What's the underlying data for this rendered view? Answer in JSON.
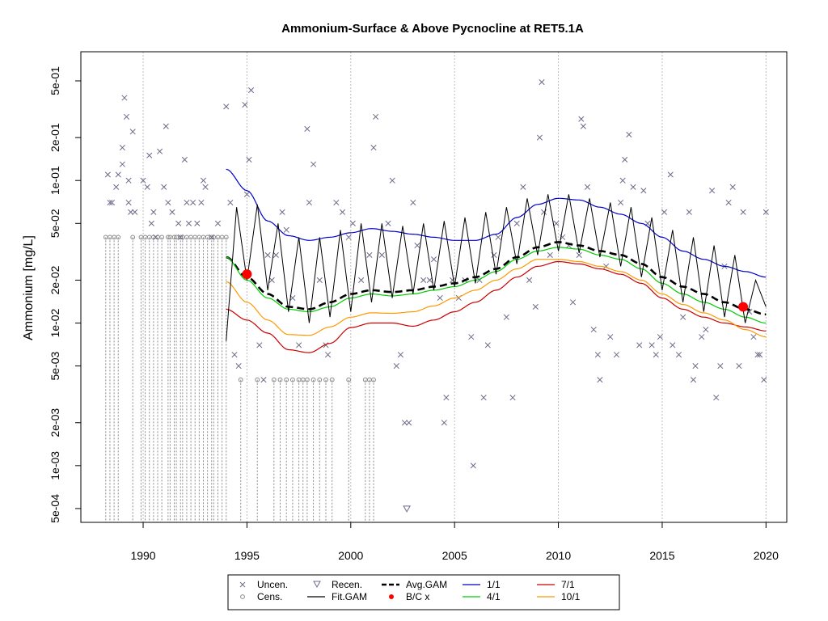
{
  "chart_data": {
    "type": "scatter",
    "title": "Ammonium-Surface & Above Pycnocline at RET5.1A",
    "ylabel": "Ammonium [mg/L]",
    "xlabel": "",
    "y_scale": "log10",
    "xlim": [
      1987.0,
      2021.0
    ],
    "ylim": [
      0.0004,
      0.8
    ],
    "grid": true,
    "x_ticks": [
      1990,
      1995,
      2000,
      2005,
      2010,
      2015,
      2020
    ],
    "x_tick_labels": [
      "1990",
      "1995",
      "2000",
      "2005",
      "2010",
      "2015",
      "2020"
    ],
    "y_ticks": [
      0.0005,
      0.001,
      0.002,
      0.005,
      0.01,
      0.02,
      0.05,
      0.1,
      0.2,
      0.5
    ],
    "y_tick_labels": [
      "5e-04",
      "1e-03",
      "2e-03",
      "5e-03",
      "1e-02",
      "2e-02",
      "5e-02",
      "1e-01",
      "2e-01",
      "5e-01"
    ],
    "legend": {
      "position": "bottom-center",
      "entries": [
        {
          "label": "Uncen.",
          "marker": "x",
          "color": "#6b6b8a"
        },
        {
          "label": "Cens.",
          "marker": "circle",
          "color": "#8a8a8a"
        },
        {
          "label": "Recen.",
          "marker": "triangle-down",
          "color": "#6b6b8a"
        },
        {
          "label": "Fit.GAM",
          "line": "solid",
          "color": "#000000"
        },
        {
          "label": "Avg.GAM",
          "line": "dashed",
          "color": "#000000"
        },
        {
          "label": "B/C x",
          "marker": "dot",
          "color": "#ff0000"
        },
        {
          "label": "1/1",
          "line": "solid",
          "color": "#0000cc"
        },
        {
          "label": "4/1",
          "line": "solid",
          "color": "#00cc00"
        },
        {
          "label": "7/1",
          "line": "solid",
          "color": "#cc0000"
        },
        {
          "label": "10/1",
          "line": "solid",
          "color": "#ff9900"
        }
      ]
    },
    "uncensored": [
      [
        1988.3,
        0.11
      ],
      [
        1988.4,
        0.07
      ],
      [
        1988.5,
        0.07
      ],
      [
        1988.7,
        0.09
      ],
      [
        1988.8,
        0.11
      ],
      [
        1989.0,
        0.13
      ],
      [
        1989.0,
        0.17
      ],
      [
        1989.1,
        0.38
      ],
      [
        1989.2,
        0.28
      ],
      [
        1989.3,
        0.07
      ],
      [
        1989.3,
        0.1
      ],
      [
        1989.4,
        0.06
      ],
      [
        1989.5,
        0.22
      ],
      [
        1989.6,
        0.06
      ],
      [
        1990.0,
        0.1
      ],
      [
        1990.2,
        0.09
      ],
      [
        1990.3,
        0.15
      ],
      [
        1990.4,
        0.05
      ],
      [
        1990.5,
        0.06
      ],
      [
        1990.6,
        0.04
      ],
      [
        1990.8,
        0.16
      ],
      [
        1991.0,
        0.09
      ],
      [
        1991.1,
        0.24
      ],
      [
        1991.2,
        0.07
      ],
      [
        1991.4,
        0.06
      ],
      [
        1991.7,
        0.05
      ],
      [
        1991.8,
        0.04
      ],
      [
        1992.0,
        0.14
      ],
      [
        1992.1,
        0.07
      ],
      [
        1992.2,
        0.05
      ],
      [
        1992.4,
        0.07
      ],
      [
        1992.6,
        0.05
      ],
      [
        1992.8,
        0.07
      ],
      [
        1992.9,
        0.1
      ],
      [
        1993.0,
        0.09
      ],
      [
        1993.3,
        0.04
      ],
      [
        1993.6,
        0.05
      ],
      [
        1994.0,
        0.33
      ],
      [
        1994.2,
        0.07
      ],
      [
        1994.4,
        0.006
      ],
      [
        1994.6,
        0.005
      ],
      [
        1994.9,
        0.34
      ],
      [
        1995.0,
        0.08
      ],
      [
        1995.1,
        0.14
      ],
      [
        1995.2,
        0.43
      ],
      [
        1995.6,
        0.007
      ],
      [
        1995.8,
        0.004
      ],
      [
        1996.0,
        0.03
      ],
      [
        1996.2,
        0.02
      ],
      [
        1996.4,
        0.03
      ],
      [
        1996.7,
        0.06
      ],
      [
        1996.9,
        0.045
      ],
      [
        1997.2,
        0.015
      ],
      [
        1997.5,
        0.007
      ],
      [
        1997.9,
        0.23
      ],
      [
        1998.0,
        0.07
      ],
      [
        1998.2,
        0.13
      ],
      [
        1998.5,
        0.02
      ],
      [
        1998.8,
        0.007
      ],
      [
        1998.9,
        0.006
      ],
      [
        1999.3,
        0.07
      ],
      [
        1999.6,
        0.06
      ],
      [
        1999.9,
        0.04
      ],
      [
        2000.1,
        0.05
      ],
      [
        2000.5,
        0.02
      ],
      [
        2000.9,
        0.03
      ],
      [
        2001.1,
        0.17
      ],
      [
        2001.2,
        0.28
      ],
      [
        2001.5,
        0.03
      ],
      [
        2001.8,
        0.05
      ],
      [
        2002.0,
        0.1
      ],
      [
        2002.2,
        0.005
      ],
      [
        2002.4,
        0.006
      ],
      [
        2002.6,
        0.002
      ],
      [
        2002.8,
        0.002
      ],
      [
        2003.0,
        0.07
      ],
      [
        2003.2,
        0.035
      ],
      [
        2003.5,
        0.02
      ],
      [
        2003.8,
        0.02
      ],
      [
        2004.0,
        0.028
      ],
      [
        2004.3,
        0.015
      ],
      [
        2004.5,
        0.002
      ],
      [
        2004.6,
        0.003
      ],
      [
        2004.9,
        0.02
      ],
      [
        2005.2,
        0.015
      ],
      [
        2005.5,
        0.02
      ],
      [
        2005.8,
        0.008
      ],
      [
        2005.9,
        0.001
      ],
      [
        2006.2,
        0.02
      ],
      [
        2006.4,
        0.003
      ],
      [
        2006.6,
        0.007
      ],
      [
        2006.9,
        0.03
      ],
      [
        2007.1,
        0.04
      ],
      [
        2007.5,
        0.011
      ],
      [
        2007.8,
        0.003
      ],
      [
        2008.0,
        0.05
      ],
      [
        2008.3,
        0.09
      ],
      [
        2008.6,
        0.02
      ],
      [
        2008.9,
        0.013
      ],
      [
        2009.1,
        0.2
      ],
      [
        2009.2,
        0.49
      ],
      [
        2009.3,
        0.06
      ],
      [
        2009.6,
        0.03
      ],
      [
        2009.9,
        0.05
      ],
      [
        2010.2,
        0.04
      ],
      [
        2010.5,
        0.035
      ],
      [
        2010.7,
        0.014
      ],
      [
        2011.0,
        0.03
      ],
      [
        2011.1,
        0.27
      ],
      [
        2011.2,
        0.24
      ],
      [
        2011.4,
        0.09
      ],
      [
        2011.7,
        0.009
      ],
      [
        2011.9,
        0.006
      ],
      [
        2012.0,
        0.004
      ],
      [
        2012.3,
        0.025
      ],
      [
        2012.5,
        0.008
      ],
      [
        2012.8,
        0.006
      ],
      [
        2013.0,
        0.07
      ],
      [
        2013.1,
        0.1
      ],
      [
        2013.2,
        0.14
      ],
      [
        2013.4,
        0.21
      ],
      [
        2013.6,
        0.09
      ],
      [
        2013.9,
        0.007
      ],
      [
        2014.1,
        0.085
      ],
      [
        2014.3,
        0.05
      ],
      [
        2014.5,
        0.007
      ],
      [
        2014.7,
        0.006
      ],
      [
        2014.9,
        0.008
      ],
      [
        2015.1,
        0.06
      ],
      [
        2015.4,
        0.11
      ],
      [
        2015.5,
        0.007
      ],
      [
        2015.8,
        0.006
      ],
      [
        2016.0,
        0.011
      ],
      [
        2016.3,
        0.06
      ],
      [
        2016.5,
        0.004
      ],
      [
        2016.6,
        0.005
      ],
      [
        2016.9,
        0.008
      ],
      [
        2017.1,
        0.009
      ],
      [
        2017.4,
        0.085
      ],
      [
        2017.6,
        0.003
      ],
      [
        2017.8,
        0.005
      ],
      [
        2018.0,
        0.025
      ],
      [
        2018.2,
        0.07
      ],
      [
        2018.4,
        0.09
      ],
      [
        2018.7,
        0.005
      ],
      [
        2018.9,
        0.06
      ],
      [
        2019.2,
        0.012
      ],
      [
        2019.4,
        0.008
      ],
      [
        2019.6,
        0.006
      ],
      [
        2019.7,
        0.006
      ],
      [
        2019.9,
        0.004
      ],
      [
        2020.0,
        0.06
      ]
    ],
    "censored": [
      [
        1988.2,
        0.04
      ],
      [
        1988.4,
        0.04
      ],
      [
        1988.6,
        0.04
      ],
      [
        1988.8,
        0.04
      ],
      [
        1989.5,
        0.04
      ],
      [
        1989.9,
        0.04
      ],
      [
        1990.1,
        0.04
      ],
      [
        1990.3,
        0.04
      ],
      [
        1990.5,
        0.04
      ],
      [
        1990.7,
        0.04
      ],
      [
        1990.9,
        0.04
      ],
      [
        1991.2,
        0.04
      ],
      [
        1991.3,
        0.04
      ],
      [
        1991.5,
        0.04
      ],
      [
        1991.6,
        0.04
      ],
      [
        1991.8,
        0.04
      ],
      [
        1991.9,
        0.04
      ],
      [
        1992.1,
        0.04
      ],
      [
        1992.3,
        0.04
      ],
      [
        1992.5,
        0.04
      ],
      [
        1992.7,
        0.04
      ],
      [
        1992.9,
        0.04
      ],
      [
        1993.1,
        0.04
      ],
      [
        1993.3,
        0.04
      ],
      [
        1993.4,
        0.04
      ],
      [
        1993.6,
        0.04
      ],
      [
        1993.8,
        0.04
      ],
      [
        1994.0,
        0.04
      ],
      [
        1994.7,
        0.004
      ],
      [
        1995.5,
        0.004
      ],
      [
        1996.3,
        0.004
      ],
      [
        1996.6,
        0.004
      ],
      [
        1996.9,
        0.004
      ],
      [
        1997.2,
        0.004
      ],
      [
        1997.5,
        0.004
      ],
      [
        1997.7,
        0.004
      ],
      [
        1997.9,
        0.004
      ],
      [
        1998.2,
        0.004
      ],
      [
        1998.5,
        0.004
      ],
      [
        1998.8,
        0.004
      ],
      [
        1999.1,
        0.004
      ],
      [
        1999.9,
        0.004
      ],
      [
        2000.7,
        0.004
      ],
      [
        2000.9,
        0.004
      ],
      [
        2001.1,
        0.004
      ]
    ],
    "recensored": [
      [
        2002.7,
        0.0005
      ]
    ],
    "bc_points": [
      [
        1995.0,
        0.022
      ],
      [
        2018.9,
        0.013
      ]
    ],
    "fit_gam_knots": [
      [
        1994.0,
        0.0075
      ],
      [
        1994.5,
        0.065
      ],
      [
        1995.0,
        0.02
      ],
      [
        1995.5,
        0.068
      ],
      [
        1996.0,
        0.017
      ],
      [
        1996.5,
        0.05
      ],
      [
        1997.0,
        0.012
      ],
      [
        1997.5,
        0.04
      ],
      [
        1998.0,
        0.01
      ],
      [
        1998.5,
        0.04
      ],
      [
        1999.0,
        0.011
      ],
      [
        1999.5,
        0.045
      ],
      [
        2000.0,
        0.012
      ],
      [
        2000.5,
        0.05
      ],
      [
        2001.0,
        0.014
      ],
      [
        2001.5,
        0.05
      ],
      [
        2002.0,
        0.015
      ],
      [
        2002.5,
        0.048
      ],
      [
        2003.0,
        0.016
      ],
      [
        2003.5,
        0.05
      ],
      [
        2004.0,
        0.017
      ],
      [
        2004.5,
        0.052
      ],
      [
        2005.0,
        0.018
      ],
      [
        2005.5,
        0.055
      ],
      [
        2006.0,
        0.019
      ],
      [
        2006.5,
        0.06
      ],
      [
        2007.0,
        0.022
      ],
      [
        2007.5,
        0.065
      ],
      [
        2008.0,
        0.026
      ],
      [
        2008.5,
        0.075
      ],
      [
        2009.0,
        0.03
      ],
      [
        2009.5,
        0.08
      ],
      [
        2010.0,
        0.032
      ],
      [
        2010.5,
        0.08
      ],
      [
        2011.0,
        0.031
      ],
      [
        2011.5,
        0.075
      ],
      [
        2012.0,
        0.029
      ],
      [
        2012.5,
        0.07
      ],
      [
        2013.0,
        0.025
      ],
      [
        2013.5,
        0.065
      ],
      [
        2014.0,
        0.021
      ],
      [
        2014.5,
        0.055
      ],
      [
        2015.0,
        0.017
      ],
      [
        2015.5,
        0.045
      ],
      [
        2016.0,
        0.014
      ],
      [
        2016.5,
        0.04
      ],
      [
        2017.0,
        0.012
      ],
      [
        2017.5,
        0.035
      ],
      [
        2018.0,
        0.011
      ],
      [
        2018.5,
        0.03
      ],
      [
        2019.0,
        0.01
      ],
      [
        2019.5,
        0.02
      ],
      [
        2020.0,
        0.013
      ]
    ],
    "series": [
      {
        "name": "Avg.GAM",
        "color": "#000000",
        "dash": true,
        "x": [
          1994.0,
          1995.0,
          1996.0,
          1997.0,
          1998.0,
          1999.0,
          2000.0,
          2001.0,
          2002.0,
          2003.0,
          2004.0,
          2005.0,
          2006.0,
          2007.0,
          2008.0,
          2009.0,
          2010.0,
          2011.0,
          2012.0,
          2013.0,
          2014.0,
          2015.0,
          2016.0,
          2017.0,
          2018.0,
          2019.0,
          2020.0
        ],
        "y": [
          0.029,
          0.021,
          0.016,
          0.013,
          0.0125,
          0.014,
          0.016,
          0.017,
          0.0165,
          0.017,
          0.018,
          0.019,
          0.021,
          0.024,
          0.029,
          0.034,
          0.037,
          0.035,
          0.032,
          0.03,
          0.026,
          0.021,
          0.018,
          0.016,
          0.014,
          0.0125,
          0.0115
        ]
      },
      {
        "name": "1/1",
        "color": "#0000cc",
        "dash": false,
        "x": [
          1994.0,
          1995.0,
          1996.0,
          1997.0,
          1998.0,
          1999.0,
          2000.0,
          2001.0,
          2002.0,
          2003.0,
          2004.0,
          2005.0,
          2006.0,
          2007.0,
          2008.0,
          2009.0,
          2010.0,
          2011.0,
          2012.0,
          2013.0,
          2014.0,
          2015.0,
          2016.0,
          2017.0,
          2018.0,
          2019.0,
          2020.0
        ],
        "y": [
          0.12,
          0.085,
          0.052,
          0.041,
          0.038,
          0.04,
          0.043,
          0.046,
          0.044,
          0.042,
          0.04,
          0.038,
          0.038,
          0.042,
          0.055,
          0.068,
          0.075,
          0.073,
          0.065,
          0.058,
          0.05,
          0.04,
          0.032,
          0.028,
          0.025,
          0.023,
          0.021
        ]
      },
      {
        "name": "4/1",
        "color": "#00cc00",
        "dash": false,
        "x": [
          1994.0,
          1995.0,
          1996.0,
          1997.0,
          1998.0,
          1999.0,
          2000.0,
          2001.0,
          2002.0,
          2003.0,
          2004.0,
          2005.0,
          2006.0,
          2007.0,
          2008.0,
          2009.0,
          2010.0,
          2011.0,
          2012.0,
          2013.0,
          2014.0,
          2015.0,
          2016.0,
          2017.0,
          2018.0,
          2019.0,
          2020.0
        ],
        "y": [
          0.029,
          0.02,
          0.015,
          0.0125,
          0.012,
          0.013,
          0.015,
          0.016,
          0.0155,
          0.016,
          0.017,
          0.018,
          0.02,
          0.023,
          0.028,
          0.032,
          0.034,
          0.033,
          0.03,
          0.028,
          0.024,
          0.019,
          0.016,
          0.014,
          0.0125,
          0.011,
          0.01
        ]
      },
      {
        "name": "7/1",
        "color": "#cc0000",
        "dash": false,
        "x": [
          1994.0,
          1995.0,
          1996.0,
          1997.0,
          1998.0,
          1999.0,
          2000.0,
          2001.0,
          2002.0,
          2003.0,
          2004.0,
          2005.0,
          2006.0,
          2007.0,
          2008.0,
          2009.0,
          2010.0,
          2011.0,
          2012.0,
          2013.0,
          2014.0,
          2015.0,
          2016.0,
          2017.0,
          2018.0,
          2019.0,
          2020.0
        ],
        "y": [
          0.0125,
          0.0105,
          0.0085,
          0.0065,
          0.0062,
          0.0072,
          0.0093,
          0.01,
          0.01,
          0.0095,
          0.0105,
          0.012,
          0.014,
          0.017,
          0.021,
          0.025,
          0.027,
          0.026,
          0.024,
          0.022,
          0.019,
          0.015,
          0.0125,
          0.011,
          0.01,
          0.0094,
          0.0088
        ]
      },
      {
        "name": "10/1",
        "color": "#ff9900",
        "dash": false,
        "x": [
          1994.0,
          1995.0,
          1996.0,
          1997.0,
          1998.0,
          1999.0,
          2000.0,
          2001.0,
          2002.0,
          2003.0,
          2004.0,
          2005.0,
          2006.0,
          2007.0,
          2008.0,
          2009.0,
          2010.0,
          2011.0,
          2012.0,
          2013.0,
          2014.0,
          2015.0,
          2016.0,
          2017.0,
          2018.0,
          2019.0,
          2020.0
        ],
        "y": [
          0.0195,
          0.014,
          0.0105,
          0.0083,
          0.0082,
          0.0094,
          0.011,
          0.0118,
          0.0117,
          0.012,
          0.0132,
          0.015,
          0.017,
          0.02,
          0.024,
          0.028,
          0.028,
          0.027,
          0.025,
          0.023,
          0.02,
          0.016,
          0.0135,
          0.0118,
          0.0105,
          0.009,
          0.008
        ]
      }
    ]
  }
}
